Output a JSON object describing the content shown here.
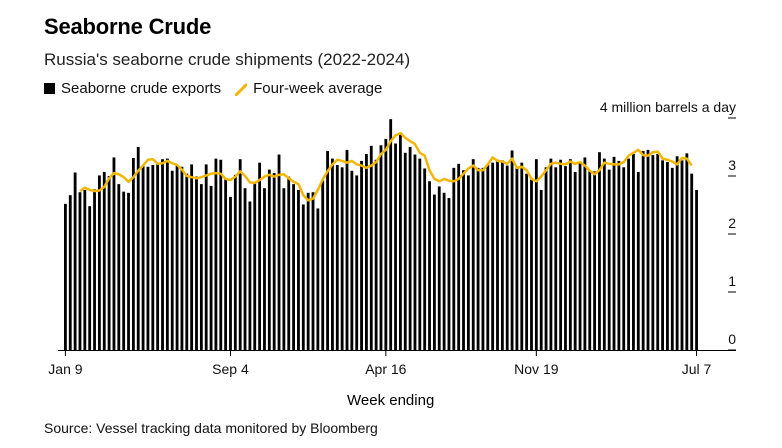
{
  "title": "Seaborne Crude",
  "subtitle": "Russia's seaborne crude shipments (2022-2024)",
  "legend": {
    "bars": "Seaborne crude exports",
    "line": "Four-week average"
  },
  "source": "Source: Vessel tracking data monitored by Bloomberg",
  "colors": {
    "bars": "#000000",
    "line": "#f2b705",
    "axis": "#000000"
  },
  "chart_data": {
    "type": "bar",
    "xlabel": "Week ending",
    "ylabel": "4 million barrels a day",
    "ylim": [
      0,
      4
    ],
    "y_ticks": [
      {
        "value": 0,
        "label": "0"
      },
      {
        "value": 1,
        "label": "1"
      },
      {
        "value": 2,
        "label": "2"
      },
      {
        "value": 3,
        "label": "3"
      },
      {
        "value": 4,
        "label": "4 million barrels a day"
      }
    ],
    "x_ticks": [
      {
        "index": 0,
        "label": "Jan 9"
      },
      {
        "index": 34,
        "label": "Sep 4"
      },
      {
        "index": 66,
        "label": "Apr 16"
      },
      {
        "index": 97,
        "label": "Nov 19"
      },
      {
        "index": 130,
        "label": "Jul 7"
      }
    ],
    "series": [
      {
        "name": "Seaborne crude exports",
        "type": "bar",
        "values": [
          2.52,
          2.67,
          3.06,
          2.72,
          2.76,
          2.48,
          2.77,
          3.01,
          3.07,
          3.0,
          3.32,
          2.86,
          2.73,
          2.71,
          3.31,
          3.5,
          3.17,
          3.16,
          3.19,
          3.22,
          3.29,
          3.3,
          3.09,
          3.19,
          3.16,
          3.04,
          3.2,
          2.99,
          2.86,
          3.2,
          2.83,
          3.3,
          3.28,
          2.95,
          2.64,
          3.02,
          3.29,
          2.79,
          2.56,
          2.88,
          3.23,
          2.79,
          3.11,
          3.05,
          3.37,
          2.79,
          2.99,
          2.86,
          2.76,
          2.51,
          2.71,
          2.72,
          2.44,
          2.92,
          3.43,
          3.3,
          3.19,
          3.15,
          3.45,
          3.09,
          3.01,
          3.26,
          3.38,
          3.52,
          3.28,
          3.53,
          3.64,
          3.98,
          3.56,
          3.72,
          3.4,
          3.5,
          3.37,
          3.3,
          3.13,
          2.91,
          2.68,
          2.82,
          2.71,
          2.62,
          3.14,
          3.21,
          3.1,
          3.01,
          3.29,
          3.14,
          3.14,
          3.2,
          3.23,
          3.28,
          3.27,
          3.18,
          3.44,
          3.15,
          3.23,
          3.04,
          2.94,
          3.29,
          2.76,
          3.15,
          3.3,
          3.15,
          3.28,
          3.17,
          3.29,
          3.07,
          3.25,
          3.32,
          3.08,
          3.08,
          3.41,
          3.3,
          3.11,
          3.33,
          3.26,
          3.15,
          3.3,
          3.38,
          3.07,
          3.43,
          3.45,
          3.36,
          3.38,
          3.27,
          3.24,
          3.14,
          3.34,
          3.27,
          3.39,
          3.04,
          2.76
        ]
      },
      {
        "name": "Four-week average",
        "type": "line",
        "values": [
          null,
          null,
          null,
          2.74,
          2.8,
          2.76,
          2.74,
          2.75,
          2.81,
          2.96,
          3.05,
          3.03,
          2.98,
          2.9,
          2.98,
          3.09,
          3.18,
          3.28,
          3.29,
          3.21,
          3.22,
          3.26,
          3.22,
          3.19,
          3.11,
          3.0,
          2.98,
          2.96,
          2.98,
          3.01,
          3.04,
          3.05,
          3.04,
          2.95,
          2.93,
          2.99,
          3.08,
          3.0,
          2.89,
          2.88,
          2.93,
          2.99,
          3.02,
          2.99,
          3.02,
          3.03,
          2.96,
          2.9,
          2.86,
          2.67,
          2.58,
          2.61,
          2.76,
          2.94,
          3.08,
          3.2,
          3.28,
          3.26,
          3.23,
          3.26,
          3.2,
          3.18,
          3.14,
          3.18,
          3.24,
          3.38,
          3.45,
          3.6,
          3.7,
          3.74,
          3.66,
          3.6,
          3.55,
          3.4,
          3.35,
          3.1,
          2.95,
          2.91,
          2.95,
          2.92,
          2.91,
          2.95,
          3.04,
          3.13,
          3.18,
          3.1,
          3.1,
          3.2,
          3.32,
          3.26,
          3.25,
          3.21,
          3.3,
          3.14,
          3.16,
          3.1,
          2.95,
          2.91,
          2.99,
          3.1,
          3.21,
          3.23,
          3.21,
          3.2,
          3.25,
          3.21,
          3.24,
          3.18,
          3.09,
          3.03,
          3.1,
          3.23,
          3.21,
          3.2,
          3.2,
          3.24,
          3.35,
          3.4,
          3.45,
          3.36,
          3.35,
          3.41,
          3.42,
          3.3,
          3.28,
          3.25,
          3.2,
          3.31,
          3.3,
          3.18
        ]
      }
    ],
    "grid": false,
    "legend_position": "top-left"
  }
}
